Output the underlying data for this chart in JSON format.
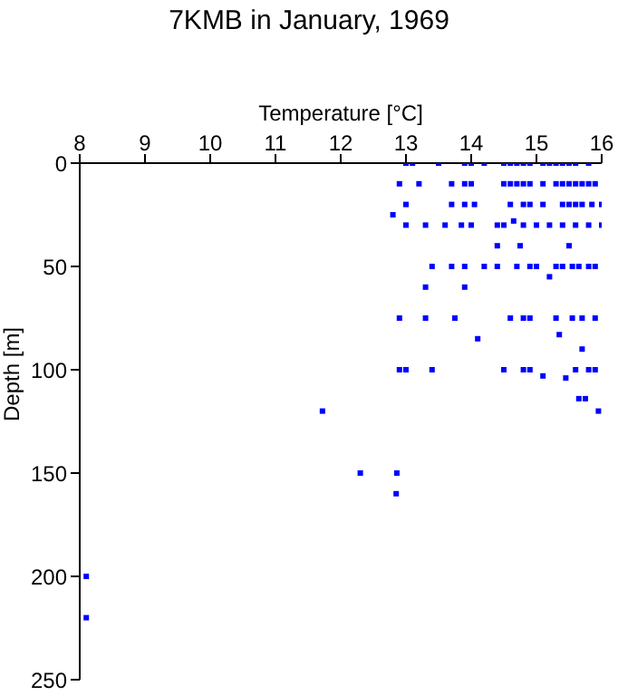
{
  "chart_data": {
    "type": "scatter",
    "title": "7KMB in January, 1969",
    "xlabel": "Temperature [°C]",
    "ylabel": "Depth [m]",
    "xlim": [
      8,
      16
    ],
    "xticks": [
      8,
      9,
      10,
      11,
      12,
      13,
      14,
      15,
      16
    ],
    "ylim": [
      250,
      0
    ],
    "yticks": [
      0,
      50,
      100,
      150,
      200,
      250
    ],
    "grid": false,
    "legend": false,
    "marker": "square",
    "series": [
      {
        "color": "#0000ff",
        "x": [
          13.0,
          13.1,
          13.5,
          13.9,
          14.0,
          14.2,
          14.5,
          14.6,
          14.7,
          14.8,
          14.9,
          15.1,
          15.2,
          15.3,
          15.4,
          15.5,
          15.6,
          15.8,
          12.9,
          13.2,
          13.7,
          13.9,
          14.0,
          14.5,
          14.6,
          14.7,
          14.8,
          14.9,
          15.1,
          15.3,
          15.4,
          15.5,
          15.6,
          15.7,
          15.8,
          15.9,
          13.0,
          13.7,
          13.9,
          14.05,
          14.6,
          14.8,
          14.9,
          15.1,
          15.4,
          15.5,
          15.6,
          15.7,
          15.85,
          16.0,
          12.8,
          14.65,
          13.0,
          13.3,
          13.6,
          13.85,
          14.0,
          14.4,
          14.5,
          14.8,
          15.0,
          15.2,
          15.4,
          15.6,
          15.8,
          16.0,
          14.4,
          14.75,
          15.5,
          13.4,
          13.7,
          13.9,
          14.2,
          14.4,
          14.7,
          14.9,
          15.0,
          15.3,
          15.4,
          15.55,
          15.65,
          15.8,
          15.9,
          15.2,
          13.3,
          13.9,
          12.9,
          13.3,
          13.75,
          14.6,
          14.8,
          14.9,
          15.3,
          15.55,
          15.7,
          15.9,
          15.35,
          14.1,
          15.7,
          12.9,
          13.0,
          13.4,
          14.5,
          14.8,
          14.9,
          15.6,
          15.8,
          15.9,
          15.1,
          15.45,
          15.65,
          15.75,
          15.95,
          11.72,
          12.3,
          12.86,
          12.85,
          8.1,
          8.1
        ],
        "values": [
          0,
          0,
          0,
          0,
          0,
          0,
          0,
          0,
          0,
          0,
          0,
          0,
          0,
          0,
          0,
          0,
          0,
          0,
          10,
          10,
          10,
          10,
          10,
          10,
          10,
          10,
          10,
          10,
          10,
          10,
          10,
          10,
          10,
          10,
          10,
          10,
          20,
          20,
          20,
          20,
          20,
          20,
          20,
          20,
          20,
          20,
          20,
          20,
          20,
          20,
          25,
          28,
          30,
          30,
          30,
          30,
          30,
          30,
          30,
          30,
          30,
          30,
          30,
          30,
          30,
          30,
          40,
          40,
          40,
          50,
          50,
          50,
          50,
          50,
          50,
          50,
          50,
          50,
          50,
          50,
          50,
          50,
          50,
          55,
          60,
          60,
          75,
          75,
          75,
          75,
          75,
          75,
          75,
          75,
          75,
          75,
          83,
          85,
          90,
          100,
          100,
          100,
          100,
          100,
          100,
          100,
          100,
          100,
          103,
          104,
          114,
          114,
          120,
          120,
          150,
          150,
          160,
          200,
          220
        ]
      }
    ]
  }
}
